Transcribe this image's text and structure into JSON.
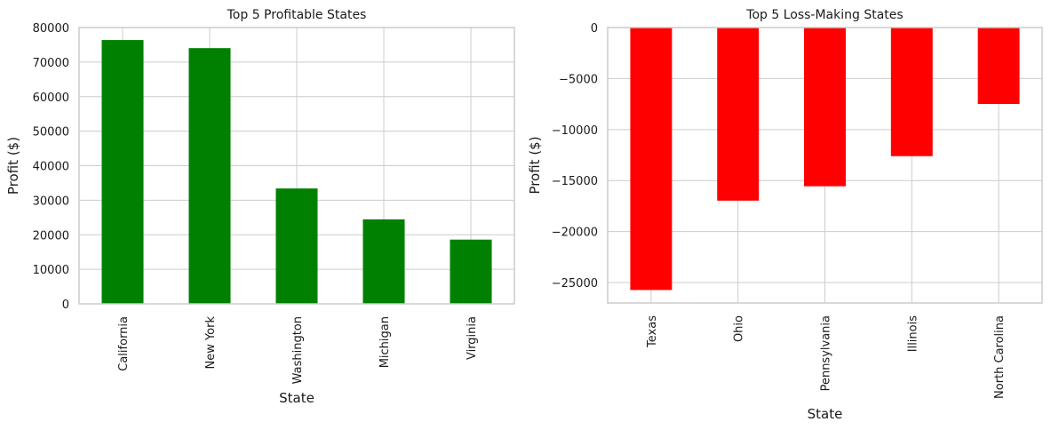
{
  "chart_data": [
    {
      "type": "bar",
      "title": "Top 5 Profitable States",
      "xlabel": "State",
      "ylabel": "Profit ($)",
      "categories": [
        "California",
        "New York",
        "Washington",
        "Michigan",
        "Virginia"
      ],
      "values": [
        76381,
        74039,
        33403,
        24463,
        18598
      ],
      "ylim": [
        0,
        80000
      ],
      "yticks": [
        "0",
        "10000",
        "20000",
        "30000",
        "40000",
        "50000",
        "60000",
        "70000",
        "80000"
      ],
      "ytick_values": [
        0,
        10000,
        20000,
        30000,
        40000,
        50000,
        60000,
        70000,
        80000
      ],
      "bar_color": "#008000",
      "grid": true
    },
    {
      "type": "bar",
      "title": "Top 5 Loss-Making States",
      "xlabel": "State",
      "ylabel": "Profit ($)",
      "categories": [
        "Texas",
        "Ohio",
        "Pennsylvania",
        "Illinois",
        "North Carolina"
      ],
      "values": [
        -25729,
        -16971,
        -15560,
        -12608,
        -7491
      ],
      "ylim": [
        -27000,
        0
      ],
      "yticks": [
        "−25000",
        "−20000",
        "−15000",
        "−10000",
        "−5000",
        "0"
      ],
      "ytick_values": [
        -25000,
        -20000,
        -15000,
        -10000,
        -5000,
        0
      ],
      "bar_color": "#ff0000",
      "grid": true
    }
  ]
}
